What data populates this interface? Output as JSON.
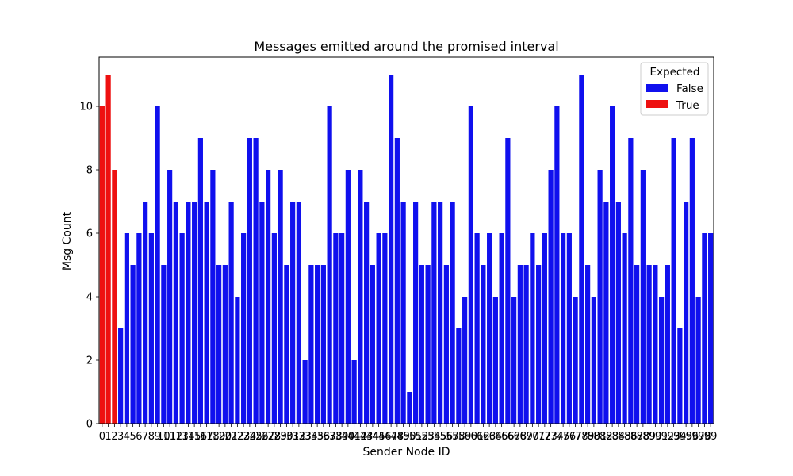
{
  "chart_data": {
    "type": "bar",
    "title": "Messages emitted around the promised interval",
    "xlabel": "Sender Node ID",
    "ylabel": "Msg Count",
    "ylim": [
      0,
      11.55
    ],
    "yticks": [
      0,
      2,
      4,
      6,
      8,
      10
    ],
    "grid": false,
    "legend": {
      "title": "Expected",
      "placement": "top-right",
      "entries": [
        {
          "name": "False",
          "color": "#1010ee"
        },
        {
          "name": "True",
          "color": "#ee1010"
        }
      ]
    },
    "categories": [
      "0",
      "1",
      "2",
      "3",
      "4",
      "5",
      "6",
      "7",
      "8",
      "9",
      "10",
      "11",
      "12",
      "13",
      "14",
      "15",
      "16",
      "17",
      "18",
      "19",
      "20",
      "21",
      "22",
      "23",
      "24",
      "25",
      "26",
      "27",
      "28",
      "29",
      "30",
      "31",
      "32",
      "33",
      "34",
      "35",
      "36",
      "37",
      "38",
      "39",
      "40",
      "41",
      "42",
      "43",
      "44",
      "45",
      "46",
      "47",
      "48",
      "49",
      "50",
      "51",
      "52",
      "53",
      "54",
      "55",
      "56",
      "57",
      "58",
      "59",
      "60",
      "61",
      "62",
      "63",
      "64",
      "65",
      "66",
      "67",
      "68",
      "69",
      "70",
      "71",
      "72",
      "73",
      "74",
      "75",
      "76",
      "77",
      "78",
      "79",
      "80",
      "81",
      "82",
      "83",
      "84",
      "85",
      "86",
      "87",
      "88",
      "89",
      "90",
      "91",
      "92",
      "93",
      "94",
      "95",
      "96",
      "97",
      "98",
      "99"
    ],
    "values": [
      10,
      11,
      8,
      3,
      6,
      5,
      6,
      7,
      6,
      10,
      5,
      8,
      7,
      6,
      7,
      7,
      9,
      7,
      8,
      5,
      5,
      7,
      4,
      6,
      9,
      9,
      7,
      8,
      6,
      8,
      5,
      7,
      7,
      2,
      5,
      5,
      5,
      10,
      6,
      6,
      8,
      2,
      8,
      7,
      5,
      6,
      6,
      11,
      9,
      7,
      1,
      7,
      5,
      5,
      7,
      7,
      5,
      7,
      3,
      4,
      10,
      6,
      5,
      6,
      4,
      6,
      9,
      4,
      5,
      5,
      6,
      5,
      6,
      8,
      10,
      6,
      6,
      4,
      11,
      5,
      4,
      8,
      7,
      10,
      7,
      6,
      9,
      5,
      8,
      5,
      5,
      4,
      5,
      9,
      3,
      7,
      9,
      4,
      6,
      6
    ],
    "expected": [
      true,
      true,
      true,
      false,
      false,
      false,
      false,
      false,
      false,
      false,
      false,
      false,
      false,
      false,
      false,
      false,
      false,
      false,
      false,
      false,
      false,
      false,
      false,
      false,
      false,
      false,
      false,
      false,
      false,
      false,
      false,
      false,
      false,
      false,
      false,
      false,
      false,
      false,
      false,
      false,
      false,
      false,
      false,
      false,
      false,
      false,
      false,
      false,
      false,
      false,
      false,
      false,
      false,
      false,
      false,
      false,
      false,
      false,
      false,
      false,
      false,
      false,
      false,
      false,
      false,
      false,
      false,
      false,
      false,
      false,
      false,
      false,
      false,
      false,
      false,
      false,
      false,
      false,
      false,
      false,
      false,
      false,
      false,
      false,
      false,
      false,
      false,
      false,
      false,
      false,
      false,
      false,
      false,
      false,
      false,
      false,
      false,
      false,
      false,
      false
    ],
    "series": [
      {
        "name": "False",
        "color": "#1010ee"
      },
      {
        "name": "True",
        "color": "#ee1010"
      }
    ]
  }
}
